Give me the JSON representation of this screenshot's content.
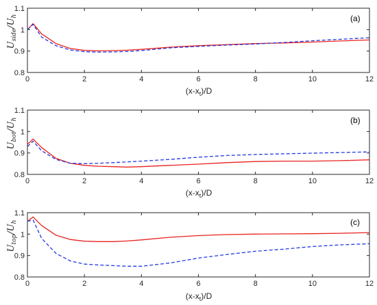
{
  "colors": {
    "series_red": "#e8211e",
    "series_blue": "#2336e0",
    "axis": "#262626"
  },
  "chart_data": [
    {
      "type": "line",
      "panel_label": "(a)",
      "ylabel": {
        "main": "U",
        "sub": "side",
        "slash": "/",
        "main2": "U",
        "sub2": "h"
      },
      "xlabel": {
        "main": "(x-x",
        "sub": "t",
        "tail": ")/D"
      },
      "xlim": [
        0,
        12
      ],
      "ylim": [
        0.8,
        1.1
      ],
      "xticks": [
        "0",
        "2",
        "4",
        "6",
        "8",
        "10",
        "12"
      ],
      "yticks": [
        "0.8",
        "0.9",
        "1",
        "1.1"
      ],
      "legend": "none",
      "grid": false,
      "series": [
        {
          "style": "solid",
          "color": "#e8211e",
          "x": [
            0,
            0.2,
            0.5,
            1,
            1.5,
            2,
            2.5,
            3,
            3.5,
            4,
            5,
            6,
            7,
            8,
            9,
            10,
            11,
            12
          ],
          "y": [
            1.0,
            1.028,
            0.98,
            0.935,
            0.912,
            0.903,
            0.901,
            0.902,
            0.904,
            0.908,
            0.918,
            0.925,
            0.93,
            0.935,
            0.938,
            0.942,
            0.947,
            0.952
          ]
        },
        {
          "style": "dashed",
          "color": "#2336e0",
          "x": [
            0,
            0.2,
            0.5,
            1,
            1.5,
            2,
            2.5,
            3,
            3.5,
            4,
            5,
            6,
            7,
            8,
            9,
            10,
            11,
            12
          ],
          "y": [
            1.0,
            1.025,
            0.965,
            0.925,
            0.905,
            0.897,
            0.895,
            0.896,
            0.898,
            0.902,
            0.915,
            0.922,
            0.928,
            0.933,
            0.94,
            0.948,
            0.955,
            0.962
          ]
        }
      ]
    },
    {
      "type": "line",
      "panel_label": "(b)",
      "ylabel": {
        "main": "U",
        "sub": "bot",
        "slash": "/",
        "main2": "U",
        "sub2": "h"
      },
      "xlabel": {
        "main": "(x-x",
        "sub": "t",
        "tail": ")/D"
      },
      "xlim": [
        0,
        12
      ],
      "ylim": [
        0.8,
        1.1
      ],
      "xticks": [
        "0",
        "2",
        "4",
        "6",
        "8",
        "10",
        "12"
      ],
      "yticks": [
        "0.8",
        "0.9",
        "1",
        "1.1"
      ],
      "legend": "none",
      "grid": false,
      "series": [
        {
          "style": "solid",
          "color": "#e8211e",
          "x": [
            0,
            0.2,
            0.5,
            1,
            1.5,
            2,
            2.5,
            3,
            3.5,
            4,
            5,
            6,
            7,
            8,
            9,
            10,
            11,
            12
          ],
          "y": [
            0.94,
            0.965,
            0.925,
            0.875,
            0.852,
            0.842,
            0.838,
            0.836,
            0.834,
            0.836,
            0.842,
            0.848,
            0.855,
            0.86,
            0.862,
            0.862,
            0.864,
            0.868
          ]
        },
        {
          "style": "dashed",
          "color": "#2336e0",
          "x": [
            0,
            0.2,
            0.5,
            1,
            1.5,
            2,
            2.5,
            3,
            3.5,
            4,
            5,
            6,
            7,
            8,
            9,
            10,
            11,
            12
          ],
          "y": [
            0.93,
            0.955,
            0.91,
            0.87,
            0.852,
            0.85,
            0.852,
            0.855,
            0.858,
            0.862,
            0.87,
            0.88,
            0.888,
            0.893,
            0.896,
            0.899,
            0.902,
            0.905
          ]
        }
      ]
    },
    {
      "type": "line",
      "panel_label": "(c)",
      "ylabel": {
        "main": "U",
        "sub": "top",
        "slash": "/",
        "main2": "U",
        "sub2": "h"
      },
      "xlabel": {
        "main": "(x-x",
        "sub": "t",
        "tail": ")/D"
      },
      "xlim": [
        0,
        12
      ],
      "ylim": [
        0.8,
        1.1
      ],
      "xticks": [
        "0",
        "2",
        "4",
        "6",
        "8",
        "10",
        "12"
      ],
      "yticks": [
        "0.8",
        "0.9",
        "1",
        "1.1"
      ],
      "legend": "none",
      "grid": false,
      "series": [
        {
          "style": "solid",
          "color": "#e8211e",
          "x": [
            0,
            0.2,
            0.5,
            1,
            1.5,
            2,
            2.5,
            3,
            3.5,
            4,
            5,
            6,
            7,
            8,
            9,
            10,
            11,
            12
          ],
          "y": [
            1.06,
            1.08,
            1.04,
            0.995,
            0.975,
            0.967,
            0.965,
            0.965,
            0.968,
            0.973,
            0.985,
            0.993,
            0.998,
            1.0,
            1.001,
            1.002,
            1.004,
            1.007
          ]
        },
        {
          "style": "dashed",
          "color": "#2336e0",
          "x": [
            0,
            0.2,
            0.5,
            1,
            1.5,
            2,
            2.5,
            3,
            3.5,
            4,
            5,
            6,
            7,
            8,
            9,
            10,
            11,
            12
          ],
          "y": [
            1.06,
            1.065,
            0.98,
            0.91,
            0.875,
            0.86,
            0.856,
            0.853,
            0.85,
            0.85,
            0.865,
            0.888,
            0.905,
            0.92,
            0.93,
            0.942,
            0.95,
            0.955
          ]
        }
      ]
    }
  ]
}
